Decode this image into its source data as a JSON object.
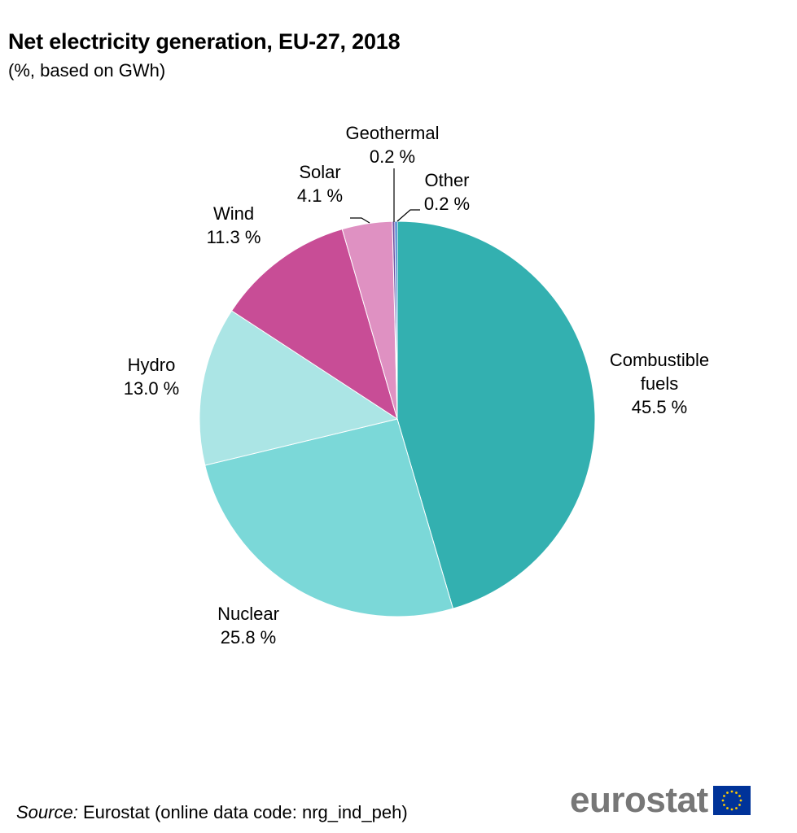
{
  "chart_data": {
    "type": "pie",
    "title": "Net electricity generation, EU-27, 2018",
    "subtitle": "(%, based on GWh)",
    "unit": "%",
    "slices": [
      {
        "label": "Combustible fuels",
        "lines": [
          "Combustible",
          "fuels"
        ],
        "value": 45.5,
        "value_text": "45.5 %",
        "color": "#33b0b0"
      },
      {
        "label": "Nuclear",
        "lines": [
          "Nuclear"
        ],
        "value": 25.8,
        "value_text": "25.8 %",
        "color": "#7bd8d8"
      },
      {
        "label": "Hydro",
        "lines": [
          "Hydro"
        ],
        "value": 13.0,
        "value_text": "13.0 %",
        "color": "#abe5e5"
      },
      {
        "label": "Wind",
        "lines": [
          "Wind"
        ],
        "value": 11.3,
        "value_text": "11.3 %",
        "color": "#c84d96"
      },
      {
        "label": "Solar",
        "lines": [
          "Solar"
        ],
        "value": 4.1,
        "value_text": "4.1 %",
        "color": "#df91c2"
      },
      {
        "label": "Geothermal",
        "lines": [
          "Geothermal"
        ],
        "value": 0.2,
        "value_text": "0.2 %",
        "color": "#6b4fa0"
      },
      {
        "label": "Other",
        "lines": [
          "Other"
        ],
        "value": 0.2,
        "value_text": "0.2 %",
        "color": "#2f6fc9"
      }
    ],
    "start": "12 o'clock",
    "direction": "clockwise"
  },
  "footer": {
    "source_prefix": "Source:",
    "source_text": " Eurostat  (online data code: nrg_ind_peh)"
  },
  "logo": {
    "text": "eurostat",
    "flag_color": "#003399",
    "star_color": "#ffcc00"
  }
}
